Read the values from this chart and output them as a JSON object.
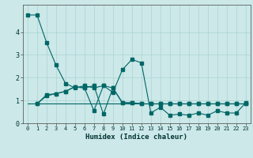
{
  "xlabel": "Humidex (Indice chaleur)",
  "background_color": "#cce8e8",
  "grid_color": "#aad4d4",
  "line_color": "#006666",
  "xlim": [
    -0.5,
    23.5
  ],
  "ylim": [
    0,
    5.2
  ],
  "xticks": [
    0,
    1,
    2,
    3,
    4,
    5,
    6,
    7,
    8,
    9,
    10,
    11,
    12,
    13,
    14,
    15,
    16,
    17,
    18,
    19,
    20,
    21,
    22,
    23
  ],
  "yticks": [
    0,
    1,
    2,
    3,
    4
  ],
  "series1_x": [
    0,
    1,
    2,
    3,
    4,
    5,
    6,
    7,
    8,
    9,
    10,
    11,
    12,
    13,
    14,
    15,
    16,
    17,
    18,
    19,
    20,
    21,
    22,
    23
  ],
  "series1_y": [
    4.75,
    4.75,
    3.55,
    2.55,
    1.75,
    1.55,
    1.65,
    1.55,
    1.65,
    1.35,
    2.35,
    2.8,
    2.65,
    0.45,
    0.7,
    0.35,
    0.4,
    0.35,
    0.45,
    0.35,
    0.55,
    0.45,
    0.45,
    0.9
  ],
  "series2_x": [
    1,
    2,
    3,
    4,
    5,
    6,
    7,
    8,
    9,
    10,
    11,
    12,
    13,
    14,
    15,
    16,
    17,
    18,
    19,
    20,
    21,
    22,
    23
  ],
  "series2_y": [
    0.85,
    1.25,
    1.3,
    1.4,
    1.6,
    1.55,
    1.65,
    0.4,
    1.55,
    0.9,
    0.9,
    0.85,
    0.85,
    0.85,
    0.85,
    0.85,
    0.85,
    0.85,
    0.85,
    0.85,
    0.85,
    0.85,
    0.85
  ],
  "series3_x": [
    1,
    2,
    3,
    4,
    5,
    6,
    7,
    8,
    9,
    10,
    11,
    12,
    13,
    14,
    15,
    16,
    17,
    18,
    19,
    20,
    21,
    22,
    23
  ],
  "series3_y": [
    0.85,
    1.2,
    1.3,
    1.4,
    1.6,
    1.55,
    0.55,
    1.65,
    1.55,
    0.9,
    0.9,
    0.85,
    0.85,
    0.85,
    0.85,
    0.85,
    0.85,
    0.85,
    0.85,
    0.85,
    0.85,
    0.85,
    0.85
  ],
  "series4_x": [
    0,
    23
  ],
  "series4_y": [
    0.85,
    0.85
  ]
}
